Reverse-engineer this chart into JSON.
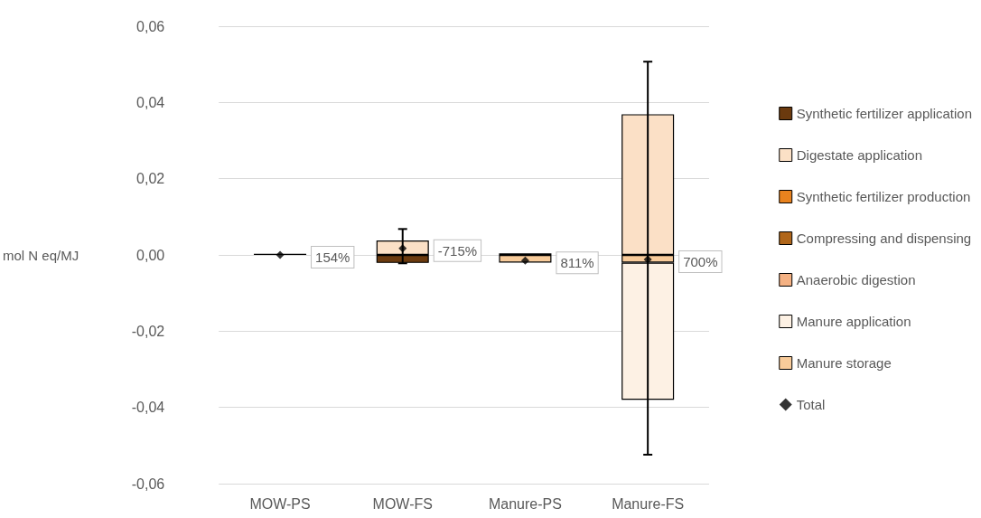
{
  "chart_data": {
    "type": "bar",
    "stacked": true,
    "ylabel": "mol N eq/MJ",
    "categories": [
      "MOW-PS",
      "MOW-FS",
      "Manure-PS",
      "Manure-FS"
    ],
    "series": [
      {
        "name": "Manure storage",
        "color": "#f8cb9a",
        "values": [
          null,
          null,
          -0.002,
          -0.002
        ]
      },
      {
        "name": "Manure application",
        "color": "#fdf1e4",
        "values": [
          null,
          null,
          null,
          -0.036
        ]
      },
      {
        "name": "Anaerobic digestion",
        "color": "#f4b183",
        "values": [
          null,
          null,
          null,
          null
        ]
      },
      {
        "name": "Compressing and dispensing",
        "color": "#b0661a",
        "values": [
          null,
          null,
          0.0004,
          null
        ]
      },
      {
        "name": "Synthetic fertilizer production",
        "color": "#e8821e",
        "values": [
          null,
          null,
          null,
          null
        ]
      },
      {
        "name": "Digestate application",
        "color": "#fbe0c6",
        "values": [
          null,
          0.0038,
          null,
          0.0369
        ]
      },
      {
        "name": "Synthetic fertilizer application",
        "color": "#6b3a0e",
        "values": [
          0.0003,
          -0.0021,
          null,
          null
        ]
      },
      {
        "name": "Total",
        "type": "scatter",
        "marker": "diamond",
        "color": "#000000",
        "values": [
          0,
          0.0017,
          -0.0015,
          -0.0012
        ],
        "errors": [
          null,
          [
            -0.0022,
            0.0068
          ],
          null,
          [
            -0.0524,
            0.0507
          ]
        ]
      }
    ],
    "annotations": [
      {
        "text": "154%",
        "x": "MOW-PS",
        "y": 0
      },
      {
        "text": "-715%",
        "x": "MOW-FS",
        "y": 0.0017
      },
      {
        "text": "811%",
        "x": "Manure-PS",
        "y": -0.0015
      },
      {
        "text": "700%",
        "x": "Manure-FS",
        "y": -0.0012
      }
    ],
    "ylim": [
      -0.06,
      0.06
    ],
    "yticks": [
      {
        "value": -0.06,
        "label": "-0,06"
      },
      {
        "value": -0.04,
        "label": "-0,04"
      },
      {
        "value": -0.02,
        "label": "-0,02"
      },
      {
        "value": 0,
        "label": "0,00"
      },
      {
        "value": 0.02,
        "label": "0,02"
      },
      {
        "value": 0.04,
        "label": "0,04"
      },
      {
        "value": 0.06,
        "label": "0,06"
      }
    ],
    "grid": "y",
    "legend": "right"
  }
}
